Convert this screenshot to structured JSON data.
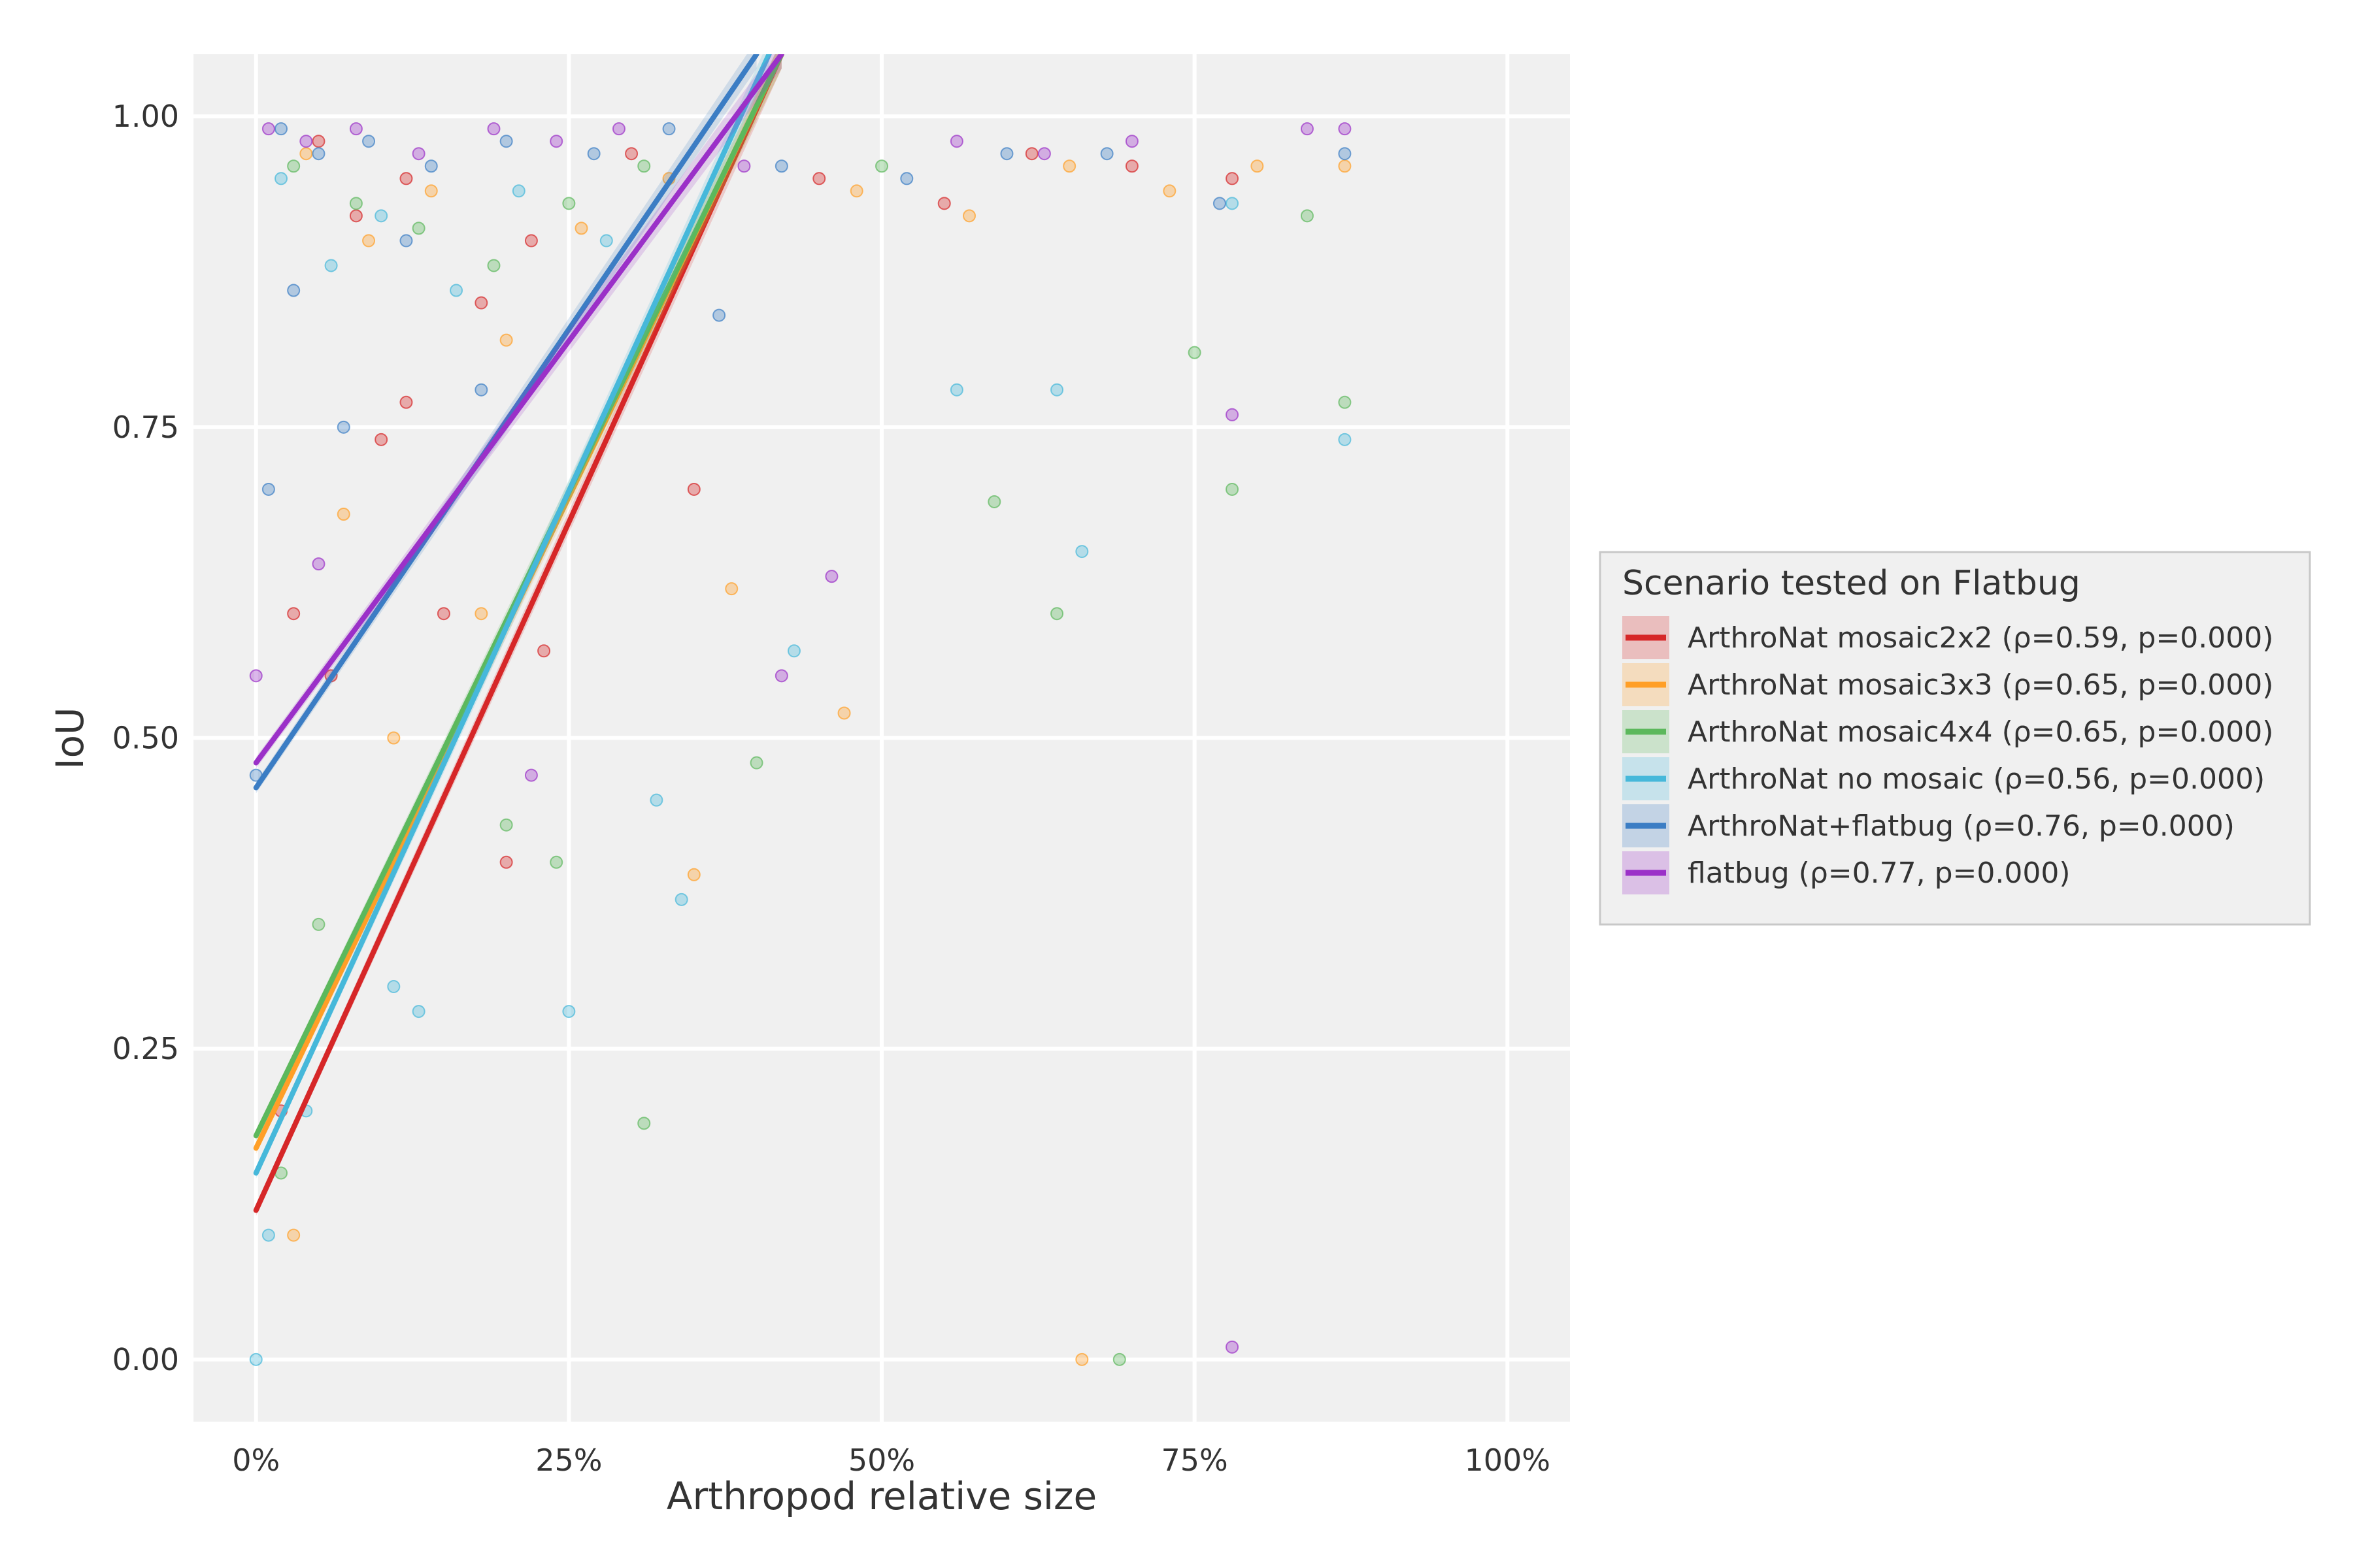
{
  "chart_data": {
    "type": "scatter",
    "xlabel": "Arthropod relative size",
    "ylabel": "IoU",
    "xlim": [
      -0.05,
      1.05
    ],
    "ylim": [
      -0.05,
      1.05
    ],
    "x_ticks": [
      0,
      0.25,
      0.5,
      0.75,
      1.0
    ],
    "x_tick_labels": [
      "0%",
      "25%",
      "50%",
      "75%",
      "100%"
    ],
    "y_ticks": [
      0,
      0.25,
      0.5,
      0.75,
      1.0
    ],
    "y_tick_labels": [
      "0.00",
      "0.25",
      "0.50",
      "0.75",
      "1.00"
    ],
    "grid": true,
    "legend": {
      "title": "Scenario tested on Flatbug",
      "placement": "right"
    },
    "series": [
      {
        "name": "ArthroNat mosaic2x2 (ρ=0.59, p=0.000)",
        "color": "#d62728",
        "fit": {
          "x": [
            0.0,
            0.42
          ],
          "y": [
            0.12,
            1.05
          ]
        },
        "points": [
          [
            0.05,
            0.98
          ],
          [
            0.08,
            0.92
          ],
          [
            0.12,
            0.95
          ],
          [
            0.18,
            0.85
          ],
          [
            0.22,
            0.9
          ],
          [
            0.3,
            0.97
          ],
          [
            0.35,
            0.7
          ],
          [
            0.45,
            0.95
          ],
          [
            0.55,
            0.93
          ],
          [
            0.62,
            0.97
          ],
          [
            0.7,
            0.96
          ],
          [
            0.78,
            0.95
          ],
          [
            0.03,
            0.6
          ],
          [
            0.1,
            0.74
          ],
          [
            0.15,
            0.6
          ],
          [
            0.2,
            0.4
          ],
          [
            0.23,
            0.57
          ],
          [
            0.12,
            0.77
          ],
          [
            0.06,
            0.55
          ],
          [
            0.02,
            0.2
          ]
        ]
      },
      {
        "name": "ArthroNat mosaic3x3 (ρ=0.65, p=0.000)",
        "color": "#ff9f27",
        "fit": {
          "x": [
            0.0,
            0.42
          ],
          "y": [
            0.17,
            1.05
          ]
        },
        "points": [
          [
            0.04,
            0.97
          ],
          [
            0.09,
            0.9
          ],
          [
            0.14,
            0.94
          ],
          [
            0.2,
            0.82
          ],
          [
            0.26,
            0.91
          ],
          [
            0.33,
            0.95
          ],
          [
            0.38,
            0.62
          ],
          [
            0.48,
            0.94
          ],
          [
            0.57,
            0.92
          ],
          [
            0.65,
            0.96
          ],
          [
            0.73,
            0.94
          ],
          [
            0.8,
            0.96
          ],
          [
            0.87,
            0.96
          ],
          [
            0.07,
            0.68
          ],
          [
            0.11,
            0.5
          ],
          [
            0.35,
            0.39
          ],
          [
            0.47,
            0.52
          ],
          [
            0.66,
            0.0
          ],
          [
            0.03,
            0.1
          ],
          [
            0.18,
            0.6
          ]
        ]
      },
      {
        "name": "ArthroNat mosaic4x4 (ρ=0.65, p=0.000)",
        "color": "#5cb85c",
        "fit": {
          "x": [
            0.0,
            0.42
          ],
          "y": [
            0.18,
            1.05
          ]
        },
        "points": [
          [
            0.03,
            0.96
          ],
          [
            0.08,
            0.93
          ],
          [
            0.13,
            0.91
          ],
          [
            0.19,
            0.88
          ],
          [
            0.25,
            0.93
          ],
          [
            0.31,
            0.96
          ],
          [
            0.4,
            0.48
          ],
          [
            0.5,
            0.96
          ],
          [
            0.59,
            0.69
          ],
          [
            0.64,
            0.6
          ],
          [
            0.75,
            0.81
          ],
          [
            0.78,
            0.7
          ],
          [
            0.84,
            0.92
          ],
          [
            0.87,
            0.77
          ],
          [
            0.31,
            0.19
          ],
          [
            0.69,
            0.0
          ],
          [
            0.24,
            0.4
          ],
          [
            0.2,
            0.43
          ],
          [
            0.05,
            0.35
          ],
          [
            0.02,
            0.15
          ]
        ]
      },
      {
        "name": "ArthroNat no mosaic (ρ=0.56, p=0.000)",
        "color": "#46b8da",
        "fit": {
          "x": [
            0.0,
            0.41
          ],
          "y": [
            0.15,
            1.05
          ]
        },
        "points": [
          [
            0.02,
            0.95
          ],
          [
            0.06,
            0.88
          ],
          [
            0.1,
            0.92
          ],
          [
            0.16,
            0.86
          ],
          [
            0.21,
            0.94
          ],
          [
            0.28,
            0.9
          ],
          [
            0.32,
            0.45
          ],
          [
            0.34,
            0.37
          ],
          [
            0.43,
            0.57
          ],
          [
            0.56,
            0.78
          ],
          [
            0.64,
            0.78
          ],
          [
            0.66,
            0.65
          ],
          [
            0.78,
            0.93
          ],
          [
            0.87,
            0.74
          ],
          [
            0.11,
            0.3
          ],
          [
            0.13,
            0.28
          ],
          [
            0.25,
            0.28
          ],
          [
            0.04,
            0.2
          ],
          [
            0.01,
            0.1
          ],
          [
            0.0,
            0.0
          ]
        ]
      },
      {
        "name": "ArthroNat+flatbug (ρ=0.76, p=0.000)",
        "color": "#3b7dc4",
        "fit": {
          "x": [
            0.0,
            0.4
          ],
          "y": [
            0.46,
            1.05
          ]
        },
        "points": [
          [
            0.02,
            0.99
          ],
          [
            0.05,
            0.97
          ],
          [
            0.09,
            0.98
          ],
          [
            0.14,
            0.96
          ],
          [
            0.2,
            0.98
          ],
          [
            0.27,
            0.97
          ],
          [
            0.33,
            0.99
          ],
          [
            0.37,
            0.84
          ],
          [
            0.42,
            0.96
          ],
          [
            0.52,
            0.95
          ],
          [
            0.6,
            0.97
          ],
          [
            0.68,
            0.97
          ],
          [
            0.77,
            0.93
          ],
          [
            0.87,
            0.97
          ],
          [
            0.07,
            0.75
          ],
          [
            0.12,
            0.9
          ],
          [
            0.18,
            0.78
          ],
          [
            0.03,
            0.86
          ],
          [
            0.01,
            0.7
          ],
          [
            0.0,
            0.47
          ]
        ]
      },
      {
        "name": "flatbug (ρ=0.77, p=0.000)",
        "color": "#9b30c8",
        "fit": {
          "x": [
            0.0,
            0.42
          ],
          "y": [
            0.48,
            1.05
          ]
        },
        "points": [
          [
            0.01,
            0.99
          ],
          [
            0.04,
            0.98
          ],
          [
            0.08,
            0.99
          ],
          [
            0.13,
            0.97
          ],
          [
            0.19,
            0.99
          ],
          [
            0.24,
            0.98
          ],
          [
            0.29,
            0.99
          ],
          [
            0.39,
            0.96
          ],
          [
            0.46,
            0.63
          ],
          [
            0.56,
            0.98
          ],
          [
            0.63,
            0.97
          ],
          [
            0.7,
            0.98
          ],
          [
            0.78,
            0.76
          ],
          [
            0.84,
            0.99
          ],
          [
            0.87,
            0.99
          ],
          [
            0.78,
            0.01
          ],
          [
            0.42,
            0.55
          ],
          [
            0.22,
            0.47
          ],
          [
            0.05,
            0.64
          ],
          [
            0.0,
            0.55
          ]
        ]
      }
    ]
  }
}
